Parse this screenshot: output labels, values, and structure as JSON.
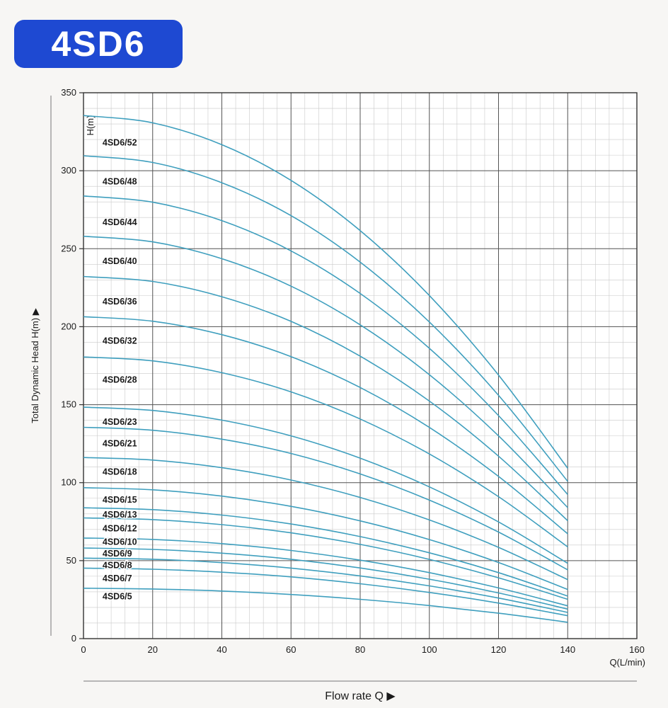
{
  "page": {
    "badge": "4SD6"
  },
  "colors": {
    "badge_bg": "#1e49d2",
    "badge_text": "#ffffff",
    "curve": "#3f9fbe",
    "grid_minor": "#c9c9c9",
    "grid_major": "#555555",
    "axis": "#333333",
    "text": "#1a1a1a"
  },
  "chart_data": {
    "type": "line",
    "title": "4SD6",
    "xlabel": "Flow  rate Q ▶",
    "ylabel": "Total Dynamic Head H(m) ▶",
    "x_unit_label": "Q(L/min)",
    "y_unit_label": "H(m)",
    "xlim": [
      0,
      160
    ],
    "ylim": [
      0,
      350
    ],
    "x_ticks": [
      0,
      20,
      40,
      60,
      80,
      100,
      120,
      140,
      160
    ],
    "y_ticks": [
      0,
      50,
      100,
      150,
      200,
      250,
      300,
      350
    ],
    "grid": {
      "minor_x_step": 4,
      "minor_y_step": 10,
      "on": true
    },
    "legend_position": "none",
    "x": [
      0,
      20,
      40,
      60,
      80,
      100,
      120,
      140
    ],
    "series": [
      {
        "name": "4SD6/52",
        "values": [
          335.4,
          330.7,
          316.7,
          293.8,
          261.6,
          220.0,
          169.0,
          109.2
        ],
        "label_q": 5.5,
        "label_h": 318
      },
      {
        "name": "4SD6/48",
        "values": [
          309.6,
          305.3,
          292.3,
          271.2,
          241.4,
          203.0,
          156.0,
          100.8
        ],
        "label_q": 5.5,
        "label_h": 293
      },
      {
        "name": "4SD6/44",
        "values": [
          283.8,
          279.8,
          268.0,
          248.6,
          221.3,
          186.1,
          143.0,
          92.4
        ],
        "label_q": 5.5,
        "label_h": 267
      },
      {
        "name": "4SD6/40",
        "values": [
          258.0,
          254.4,
          243.6,
          226.0,
          201.2,
          169.2,
          130.0,
          84.0
        ],
        "label_q": 5.5,
        "label_h": 242
      },
      {
        "name": "4SD6/36",
        "values": [
          232.2,
          229.0,
          219.2,
          203.4,
          181.1,
          152.3,
          117.0,
          75.6
        ],
        "label_q": 5.5,
        "label_h": 216
      },
      {
        "name": "4SD6/32",
        "values": [
          206.4,
          203.5,
          194.9,
          180.8,
          161.0,
          135.4,
          104.0,
          67.2
        ],
        "label_q": 5.5,
        "label_h": 191
      },
      {
        "name": "4SD6/28",
        "values": [
          180.6,
          178.1,
          170.5,
          158.2,
          140.8,
          118.4,
          91.0,
          58.8
        ],
        "label_q": 5.5,
        "label_h": 166
      },
      {
        "name": "4SD6/23",
        "values": [
          148.4,
          146.3,
          140.1,
          130.0,
          115.7,
          97.3,
          74.8,
          48.3
        ],
        "label_q": 5.5,
        "label_h": 139
      },
      {
        "name": "4SD6/21",
        "values": [
          135.5,
          133.6,
          127.9,
          118.7,
          105.6,
          88.8,
          68.3,
          44.1
        ],
        "label_q": 5.5,
        "label_h": 125
      },
      {
        "name": "4SD6/18",
        "values": [
          116.1,
          114.5,
          109.6,
          101.7,
          90.5,
          76.1,
          58.5,
          37.8
        ],
        "label_q": 5.5,
        "label_h": 107
      },
      {
        "name": "4SD6/15",
        "values": [
          96.8,
          95.4,
          91.4,
          84.8,
          75.5,
          63.5,
          48.8,
          31.5
        ],
        "label_q": 5.5,
        "label_h": 89
      },
      {
        "name": "4SD6/13",
        "values": [
          83.9,
          82.7,
          79.2,
          73.5,
          65.4,
          55.0,
          42.3,
          27.3
        ],
        "label_q": 5.5,
        "label_h": 79.5
      },
      {
        "name": "4SD6/12",
        "values": [
          77.4,
          76.3,
          73.1,
          67.8,
          60.4,
          50.8,
          39.0,
          25.2
        ],
        "label_q": 5.5,
        "label_h": 70.5
      },
      {
        "name": "4SD6/10",
        "values": [
          64.5,
          63.6,
          60.9,
          56.5,
          50.3,
          42.3,
          32.5,
          21.0
        ],
        "label_q": 5.5,
        "label_h": 62
      },
      {
        "name": "4SD6/9",
        "values": [
          58.1,
          57.2,
          54.8,
          50.9,
          45.3,
          38.1,
          29.3,
          18.9
        ],
        "label_q": 5.5,
        "label_h": 54.5
      },
      {
        "name": "4SD6/8",
        "values": [
          51.6,
          50.9,
          48.7,
          45.2,
          40.2,
          33.8,
          26.0,
          16.8
        ],
        "label_q": 5.5,
        "label_h": 47
      },
      {
        "name": "4SD6/7",
        "values": [
          45.2,
          44.5,
          42.6,
          39.6,
          35.2,
          29.6,
          22.8,
          14.7
        ],
        "label_q": 5.5,
        "label_h": 38.5
      },
      {
        "name": "4SD6/5",
        "values": [
          32.3,
          31.8,
          30.5,
          28.3,
          25.2,
          21.2,
          16.3,
          10.5
        ],
        "label_q": 5.5,
        "label_h": 27
      }
    ]
  }
}
